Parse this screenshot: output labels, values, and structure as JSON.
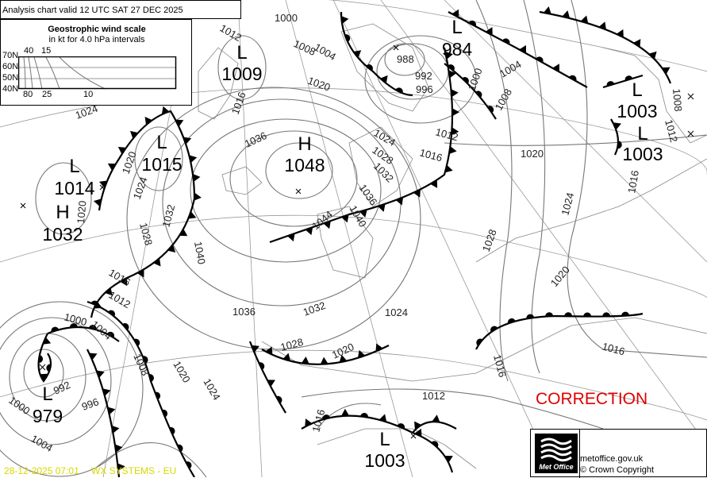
{
  "header": {
    "title": "Analysis chart valid 12 UTC SAT 27  DEC 2025"
  },
  "wind_scale": {
    "title": "Geostrophic wind scale",
    "subtitle": "in kt for 4.0 hPa intervals",
    "latitudes": [
      "70N",
      "60N",
      "50N",
      "40N"
    ],
    "top_ticks": [
      "40",
      "15"
    ],
    "bottom_ticks": [
      "80",
      "25",
      "10"
    ]
  },
  "pressure_centres": [
    {
      "type": "L",
      "value": "1009"
    },
    {
      "type": "L",
      "value": "984"
    },
    {
      "type": "H",
      "value": "1048"
    },
    {
      "type": "L",
      "value": "1015"
    },
    {
      "type": "L",
      "value": "1014"
    },
    {
      "type": "H",
      "value": "1032"
    },
    {
      "type": "L",
      "value": "1003"
    },
    {
      "type": "L",
      "value": "1003"
    },
    {
      "type": "L",
      "value": "979"
    },
    {
      "type": "L",
      "value": "1003"
    }
  ],
  "isobar_labels": [
    "1000",
    "1012",
    "1008",
    "1004",
    "1020",
    "1016",
    "988",
    "992",
    "996",
    "1000",
    "1004",
    "1008",
    "1012",
    "1016",
    "1024",
    "1028",
    "1032",
    "1036",
    "1040",
    "1044",
    "1036",
    "1024",
    "1020",
    "1024",
    "1020",
    "1028",
    "1032",
    "1040",
    "1020",
    "1024",
    "1016",
    "1012",
    "1008",
    "1028",
    "1020",
    "1016",
    "1016",
    "1012",
    "1036",
    "1032",
    "1024",
    "1028",
    "1020",
    "1020",
    "1024",
    "1016",
    "1012",
    "1004",
    "1000",
    "1008",
    "992",
    "996",
    "1000",
    "1004",
    "1016"
  ],
  "correction": "CORRECTION",
  "footer": {
    "logo_text": "Met Office",
    "url": "metoffice.gov.uk",
    "copyright": "© Crown Copyright",
    "timestamp": "28-12-2025  07:01",
    "system": "WX SYSTEMS - EU"
  },
  "colors": {
    "correction": "#e00000",
    "stamp": "#d8d800",
    "isobar": "#777777",
    "front": "#000000"
  }
}
